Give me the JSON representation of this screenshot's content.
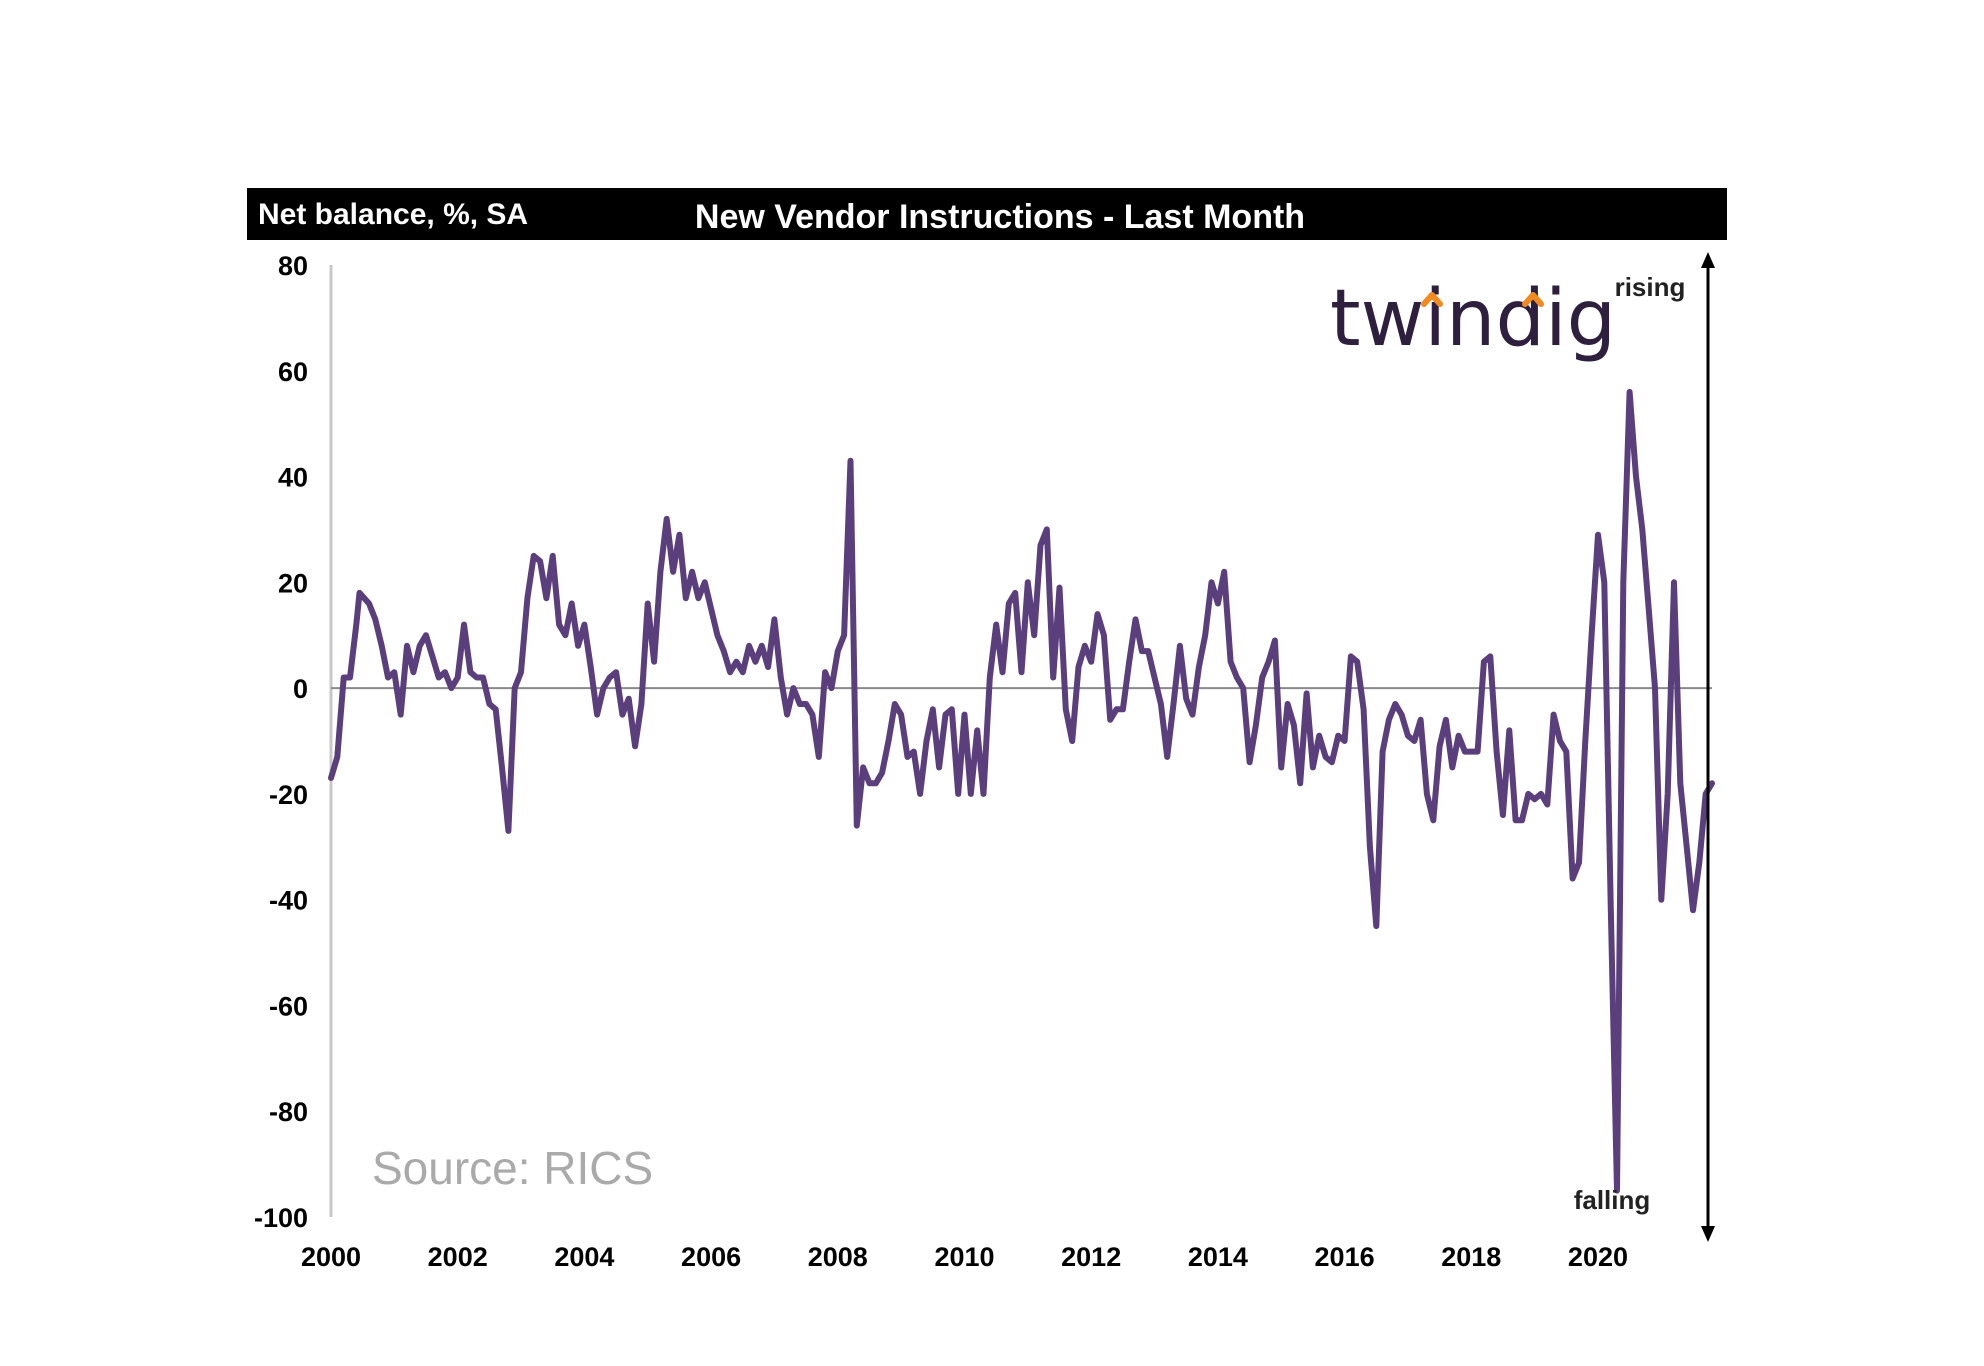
{
  "chart_data": {
    "type": "line",
    "title": "New Vendor Instructions - Last Month",
    "ylabel": "Net balance, %, SA",
    "xlabel": "",
    "ylim": [
      -100,
      80
    ],
    "xlim": [
      2000,
      2021.8
    ],
    "yticks": [
      80,
      60,
      40,
      20,
      0,
      -20,
      -40,
      -60,
      -80,
      -100
    ],
    "xticks": [
      2000,
      2002,
      2004,
      2006,
      2008,
      2010,
      2012,
      2014,
      2016,
      2018,
      2020
    ],
    "grid": false,
    "zero_line": true,
    "annotations": {
      "up": "rising",
      "down": "falling"
    },
    "source": "Source: RICS",
    "series": [
      {
        "color": "#5b3f7c",
        "points": [
          [
            2000.0,
            -17
          ],
          [
            2000.1,
            -13
          ],
          [
            2000.2,
            2
          ],
          [
            2000.3,
            2
          ],
          [
            2000.4,
            12
          ],
          [
            2000.45,
            18
          ],
          [
            2000.6,
            16
          ],
          [
            2000.7,
            13
          ],
          [
            2000.8,
            8
          ],
          [
            2000.9,
            2
          ],
          [
            2001.0,
            3
          ],
          [
            2001.1,
            -5
          ],
          [
            2001.2,
            8
          ],
          [
            2001.3,
            3
          ],
          [
            2001.4,
            8
          ],
          [
            2001.5,
            10
          ],
          [
            2001.6,
            6
          ],
          [
            2001.7,
            2
          ],
          [
            2001.8,
            3
          ],
          [
            2001.9,
            0
          ],
          [
            2002.0,
            2
          ],
          [
            2002.1,
            12
          ],
          [
            2002.2,
            3
          ],
          [
            2002.3,
            2
          ],
          [
            2002.4,
            2
          ],
          [
            2002.5,
            -3
          ],
          [
            2002.6,
            -4
          ],
          [
            2002.7,
            -15
          ],
          [
            2002.8,
            -27
          ],
          [
            2002.9,
            0
          ],
          [
            2003.0,
            3
          ],
          [
            2003.1,
            17
          ],
          [
            2003.2,
            25
          ],
          [
            2003.3,
            24
          ],
          [
            2003.4,
            17
          ],
          [
            2003.5,
            25
          ],
          [
            2003.6,
            12
          ],
          [
            2003.7,
            10
          ],
          [
            2003.8,
            16
          ],
          [
            2003.9,
            8
          ],
          [
            2004.0,
            12
          ],
          [
            2004.1,
            4
          ],
          [
            2004.2,
            -5
          ],
          [
            2004.3,
            0
          ],
          [
            2004.4,
            2
          ],
          [
            2004.5,
            3
          ],
          [
            2004.6,
            -5
          ],
          [
            2004.7,
            -2
          ],
          [
            2004.8,
            -11
          ],
          [
            2004.9,
            -3
          ],
          [
            2005.0,
            16
          ],
          [
            2005.1,
            5
          ],
          [
            2005.2,
            22
          ],
          [
            2005.3,
            32
          ],
          [
            2005.4,
            22
          ],
          [
            2005.5,
            29
          ],
          [
            2005.6,
            17
          ],
          [
            2005.7,
            22
          ],
          [
            2005.8,
            17
          ],
          [
            2005.9,
            20
          ],
          [
            2006.0,
            15
          ],
          [
            2006.1,
            10
          ],
          [
            2006.2,
            7
          ],
          [
            2006.3,
            3
          ],
          [
            2006.4,
            5
          ],
          [
            2006.5,
            3
          ],
          [
            2006.6,
            8
          ],
          [
            2006.7,
            5
          ],
          [
            2006.8,
            8
          ],
          [
            2006.9,
            4
          ],
          [
            2007.0,
            13
          ],
          [
            2007.1,
            2
          ],
          [
            2007.2,
            -5
          ],
          [
            2007.3,
            0
          ],
          [
            2007.4,
            -3
          ],
          [
            2007.5,
            -3
          ],
          [
            2007.6,
            -5
          ],
          [
            2007.7,
            -13
          ],
          [
            2007.8,
            3
          ],
          [
            2007.9,
            0
          ],
          [
            2008.0,
            7
          ],
          [
            2008.1,
            10
          ],
          [
            2008.2,
            43
          ],
          [
            2008.3,
            -26
          ],
          [
            2008.4,
            -15
          ],
          [
            2008.5,
            -18
          ],
          [
            2008.6,
            -18
          ],
          [
            2008.7,
            -16
          ],
          [
            2008.8,
            -10
          ],
          [
            2008.9,
            -3
          ],
          [
            2009.0,
            -5
          ],
          [
            2009.1,
            -13
          ],
          [
            2009.2,
            -12
          ],
          [
            2009.3,
            -20
          ],
          [
            2009.4,
            -10
          ],
          [
            2009.5,
            -4
          ],
          [
            2009.6,
            -15
          ],
          [
            2009.7,
            -5
          ],
          [
            2009.8,
            -4
          ],
          [
            2009.9,
            -20
          ],
          [
            2010.0,
            -5
          ],
          [
            2010.1,
            -20
          ],
          [
            2010.2,
            -8
          ],
          [
            2010.3,
            -20
          ],
          [
            2010.4,
            2
          ],
          [
            2010.5,
            12
          ],
          [
            2010.6,
            3
          ],
          [
            2010.7,
            16
          ],
          [
            2010.8,
            18
          ],
          [
            2010.9,
            3
          ],
          [
            2011.0,
            20
          ],
          [
            2011.1,
            10
          ],
          [
            2011.2,
            27
          ],
          [
            2011.3,
            30
          ],
          [
            2011.4,
            2
          ],
          [
            2011.5,
            19
          ],
          [
            2011.6,
            -4
          ],
          [
            2011.7,
            -10
          ],
          [
            2011.8,
            4
          ],
          [
            2011.9,
            8
          ],
          [
            2012.0,
            5
          ],
          [
            2012.1,
            14
          ],
          [
            2012.2,
            10
          ],
          [
            2012.3,
            -6
          ],
          [
            2012.4,
            -4
          ],
          [
            2012.5,
            -4
          ],
          [
            2012.6,
            5
          ],
          [
            2012.7,
            13
          ],
          [
            2012.8,
            7
          ],
          [
            2012.9,
            7
          ],
          [
            2013.0,
            2
          ],
          [
            2013.1,
            -3
          ],
          [
            2013.2,
            -13
          ],
          [
            2013.3,
            -3
          ],
          [
            2013.4,
            8
          ],
          [
            2013.5,
            -2
          ],
          [
            2013.6,
            -5
          ],
          [
            2013.7,
            4
          ],
          [
            2013.8,
            10
          ],
          [
            2013.9,
            20
          ],
          [
            2014.0,
            16
          ],
          [
            2014.1,
            22
          ],
          [
            2014.2,
            5
          ],
          [
            2014.3,
            2
          ],
          [
            2014.4,
            0
          ],
          [
            2014.5,
            -14
          ],
          [
            2014.6,
            -7
          ],
          [
            2014.7,
            2
          ],
          [
            2014.8,
            5
          ],
          [
            2014.9,
            9
          ],
          [
            2015.0,
            -15
          ],
          [
            2015.1,
            -3
          ],
          [
            2015.2,
            -7
          ],
          [
            2015.3,
            -18
          ],
          [
            2015.4,
            -1
          ],
          [
            2015.5,
            -15
          ],
          [
            2015.6,
            -9
          ],
          [
            2015.7,
            -13
          ],
          [
            2015.8,
            -14
          ],
          [
            2015.9,
            -9
          ],
          [
            2016.0,
            -10
          ],
          [
            2016.1,
            6
          ],
          [
            2016.2,
            5
          ],
          [
            2016.3,
            -4
          ],
          [
            2016.4,
            -30
          ],
          [
            2016.5,
            -45
          ],
          [
            2016.6,
            -12
          ],
          [
            2016.7,
            -6
          ],
          [
            2016.8,
            -3
          ],
          [
            2016.9,
            -5
          ],
          [
            2017.0,
            -9
          ],
          [
            2017.1,
            -10
          ],
          [
            2017.2,
            -6
          ],
          [
            2017.3,
            -20
          ],
          [
            2017.4,
            -25
          ],
          [
            2017.5,
            -11
          ],
          [
            2017.6,
            -6
          ],
          [
            2017.7,
            -15
          ],
          [
            2017.8,
            -9
          ],
          [
            2017.9,
            -12
          ],
          [
            2018.0,
            -12
          ],
          [
            2018.1,
            -12
          ],
          [
            2018.2,
            5
          ],
          [
            2018.3,
            6
          ],
          [
            2018.4,
            -12
          ],
          [
            2018.5,
            -24
          ],
          [
            2018.6,
            -8
          ],
          [
            2018.7,
            -25
          ],
          [
            2018.8,
            -25
          ],
          [
            2018.9,
            -20
          ],
          [
            2019.0,
            -21
          ],
          [
            2019.1,
            -20
          ],
          [
            2019.2,
            -22
          ],
          [
            2019.3,
            -5
          ],
          [
            2019.4,
            -10
          ],
          [
            2019.5,
            -12
          ],
          [
            2019.6,
            -36
          ],
          [
            2019.7,
            -33
          ],
          [
            2019.8,
            -10
          ],
          [
            2019.9,
            10
          ],
          [
            2020.0,
            29
          ],
          [
            2020.1,
            20
          ],
          [
            2020.2,
            -40
          ],
          [
            2020.3,
            -95
          ],
          [
            2020.4,
            20
          ],
          [
            2020.5,
            56
          ],
          [
            2020.6,
            40
          ],
          [
            2020.7,
            30
          ],
          [
            2020.8,
            15
          ],
          [
            2020.9,
            0
          ],
          [
            2021.0,
            -40
          ],
          [
            2021.1,
            -20
          ],
          [
            2021.2,
            20
          ],
          [
            2021.3,
            -18
          ],
          [
            2021.4,
            -30
          ],
          [
            2021.5,
            -42
          ],
          [
            2021.6,
            -33
          ],
          [
            2021.7,
            -20
          ],
          [
            2021.8,
            -18
          ]
        ]
      }
    ]
  },
  "logo": {
    "name": "twindig",
    "text_color": "#2f1f3f",
    "accent_color": "#f28a22"
  }
}
